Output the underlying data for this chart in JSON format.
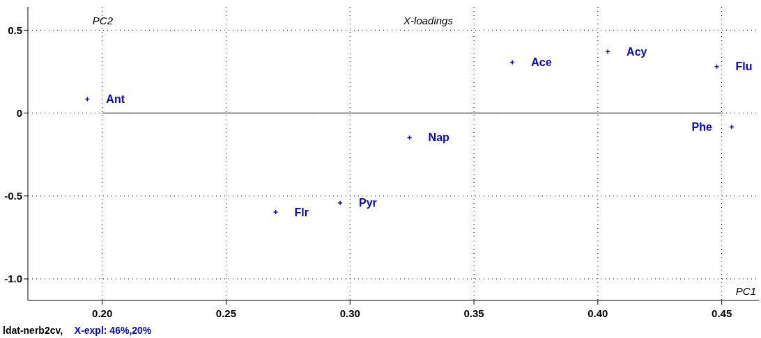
{
  "chart_data": {
    "type": "scatter",
    "title": "X-loadings",
    "xlabel": "PC1",
    "ylabel": "PC2",
    "series": [
      {
        "color": "#0000ff",
        "x": [
          0.194,
          0.3655,
          0.404,
          0.448,
          0.454,
          0.324,
          0.296,
          0.27
        ],
        "values": [
          0.084,
          0.307,
          0.37,
          0.28,
          -0.084,
          -0.147,
          -0.542,
          -0.597
        ]
      }
    ],
    "marker": "cross",
    "xlim": [
      0.17,
      0.465
    ],
    "ylim": [
      -1.13,
      0.64
    ],
    "xticks": [
      {
        "value": 0.2,
        "label": "0.20"
      },
      {
        "value": 0.25,
        "label": "0.25"
      },
      {
        "value": 0.3,
        "label": "0.30"
      },
      {
        "value": 0.35,
        "label": "0.35"
      },
      {
        "value": 0.4,
        "label": "0.40"
      },
      {
        "value": 0.45,
        "label": "0.45"
      }
    ],
    "yticks": [
      {
        "value": -1,
        "label": "-1.0"
      },
      {
        "value": -0.5,
        "label": "-0.5"
      },
      0,
      0.5
    ],
    "grid": true,
    "ref_lines": [
      {
        "axis": "y",
        "value": 0,
        "color": "#000000",
        "line_style": "solid"
      }
    ],
    "annotations": [
      {
        "text": "Ant",
        "x": 0.194,
        "y": 0.084
      },
      {
        "text": "Ace",
        "x": 0.3655,
        "y": 0.307
      },
      {
        "text": "Acy",
        "x": 0.404,
        "y": 0.37
      },
      {
        "text": "Flu",
        "x": 0.448,
        "y": 0.28
      },
      {
        "text": "Phe",
        "x": 0.454,
        "y": -0.084
      },
      {
        "text": "Nap",
        "x": 0.324,
        "y": -0.147
      },
      {
        "text": "Pyr",
        "x": 0.296,
        "y": -0.542
      },
      {
        "text": "Flr",
        "x": 0.27,
        "y": -0.597
      },
      "ldat-nerb2cv,",
      "X-expl: 46%,20%"
    ]
  }
}
